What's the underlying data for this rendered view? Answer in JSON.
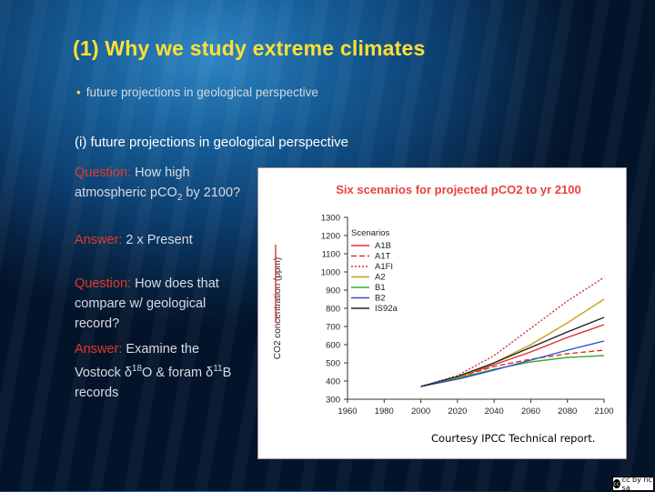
{
  "slide": {
    "title": "(1) Why we study extreme climates",
    "bullet": "future projections in geological perspective",
    "subheading": "(i) future projections in geological perspective"
  },
  "qa": {
    "q1_label": "Question:",
    "q1_text_a": "How high atmospheric pCO",
    "q1_sub": "2",
    "q1_text_b": " by 2100?",
    "a1_label": "Answer:",
    "a1_text": "2 x Present",
    "q2_label": "Question:",
    "q2_text": "How does that compare w/ geological record?",
    "a2_label": "Answer:",
    "a2_text_a": "Examine the Vostock ",
    "a2_delta": "δ",
    "a2_sup1": "18",
    "a2_text_b": "O & foram ",
    "a2_sup2": "11",
    "a2_text_c": "B records"
  },
  "figure": {
    "courtesy": "Courtesy IPCC Technical report.",
    "license_badge": "cc by nc sa"
  },
  "chart_data": {
    "type": "line",
    "title": "Six scenarios for projected pCO2 to yr 2100",
    "xlabel": "",
    "ylabel": "CO2 concentration (ppm)",
    "xlim": [
      1960,
      2100
    ],
    "ylim": [
      300,
      1300
    ],
    "xticks": [
      1960,
      1980,
      2000,
      2020,
      2040,
      2060,
      2080,
      2100
    ],
    "yticks": [
      300,
      400,
      500,
      600,
      700,
      800,
      900,
      1000,
      1100,
      1200,
      1300
    ],
    "legend_title": "Scenarios",
    "legend_position": "top-left",
    "series": [
      {
        "name": "A1B",
        "color": "#e03030",
        "dash": "solid",
        "x": [
          2000,
          2020,
          2040,
          2060,
          2080,
          2100
        ],
        "y": [
          370,
          420,
          490,
          560,
          640,
          710
        ]
      },
      {
        "name": "A1T",
        "color": "#e03030",
        "dash": "dashed",
        "x": [
          2000,
          2020,
          2040,
          2060,
          2080,
          2100
        ],
        "y": [
          370,
          420,
          480,
          520,
          550,
          570
        ]
      },
      {
        "name": "A1FI",
        "color": "#d03030",
        "dash": "dotted",
        "x": [
          2000,
          2020,
          2040,
          2060,
          2080,
          2100
        ],
        "y": [
          370,
          430,
          540,
          690,
          840,
          970
        ]
      },
      {
        "name": "A2",
        "color": "#c8a020",
        "dash": "solid",
        "x": [
          2000,
          2020,
          2040,
          2060,
          2080,
          2100
        ],
        "y": [
          370,
          420,
          500,
          600,
          720,
          850
        ]
      },
      {
        "name": "B1",
        "color": "#30b030",
        "dash": "solid",
        "x": [
          2000,
          2020,
          2040,
          2060,
          2080,
          2100
        ],
        "y": [
          370,
          415,
          465,
          505,
          530,
          540
        ]
      },
      {
        "name": "B2",
        "color": "#3050d0",
        "dash": "solid",
        "x": [
          2000,
          2020,
          2040,
          2060,
          2080,
          2100
        ],
        "y": [
          370,
          410,
          460,
          515,
          570,
          620
        ]
      },
      {
        "name": "IS92a",
        "color": "#222222",
        "dash": "solid",
        "x": [
          2000,
          2020,
          2040,
          2060,
          2080,
          2100
        ],
        "y": [
          370,
          425,
          500,
          585,
          670,
          750
        ]
      }
    ]
  }
}
